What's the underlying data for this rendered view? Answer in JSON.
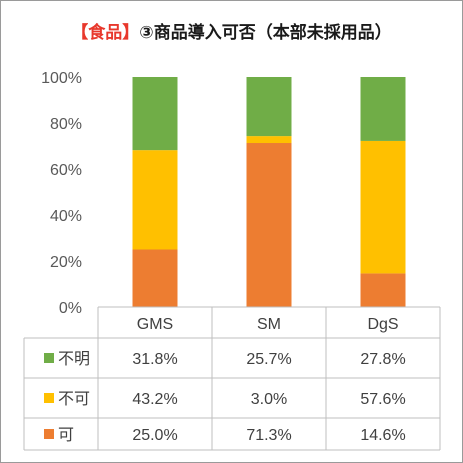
{
  "title": {
    "tag": "【食品】",
    "text": "③商品導入可否（本部未採用品）"
  },
  "chart_data": {
    "type": "bar",
    "stacked": true,
    "categories": [
      "GMS",
      "SM",
      "DgS"
    ],
    "series": [
      {
        "name": "可",
        "color": "#ED7D31",
        "values": [
          25.0,
          71.3,
          14.6
        ],
        "labels": [
          "25.0%",
          "71.3%",
          "14.6%"
        ]
      },
      {
        "name": "不可",
        "color": "#FFC000",
        "values": [
          43.2,
          3.0,
          57.6
        ],
        "labels": [
          "43.2%",
          "3.0%",
          "57.6%"
        ]
      },
      {
        "name": "不明",
        "color": "#70AD47",
        "values": [
          31.8,
          25.7,
          27.8
        ],
        "labels": [
          "31.8%",
          "25.7%",
          "27.8%"
        ]
      }
    ],
    "ylim": [
      0,
      100
    ],
    "yticks": [
      "0%",
      "20%",
      "40%",
      "60%",
      "80%",
      "100%"
    ],
    "grid": false,
    "data_table": true,
    "table_row_order": [
      "不明",
      "不可",
      "可"
    ]
  }
}
